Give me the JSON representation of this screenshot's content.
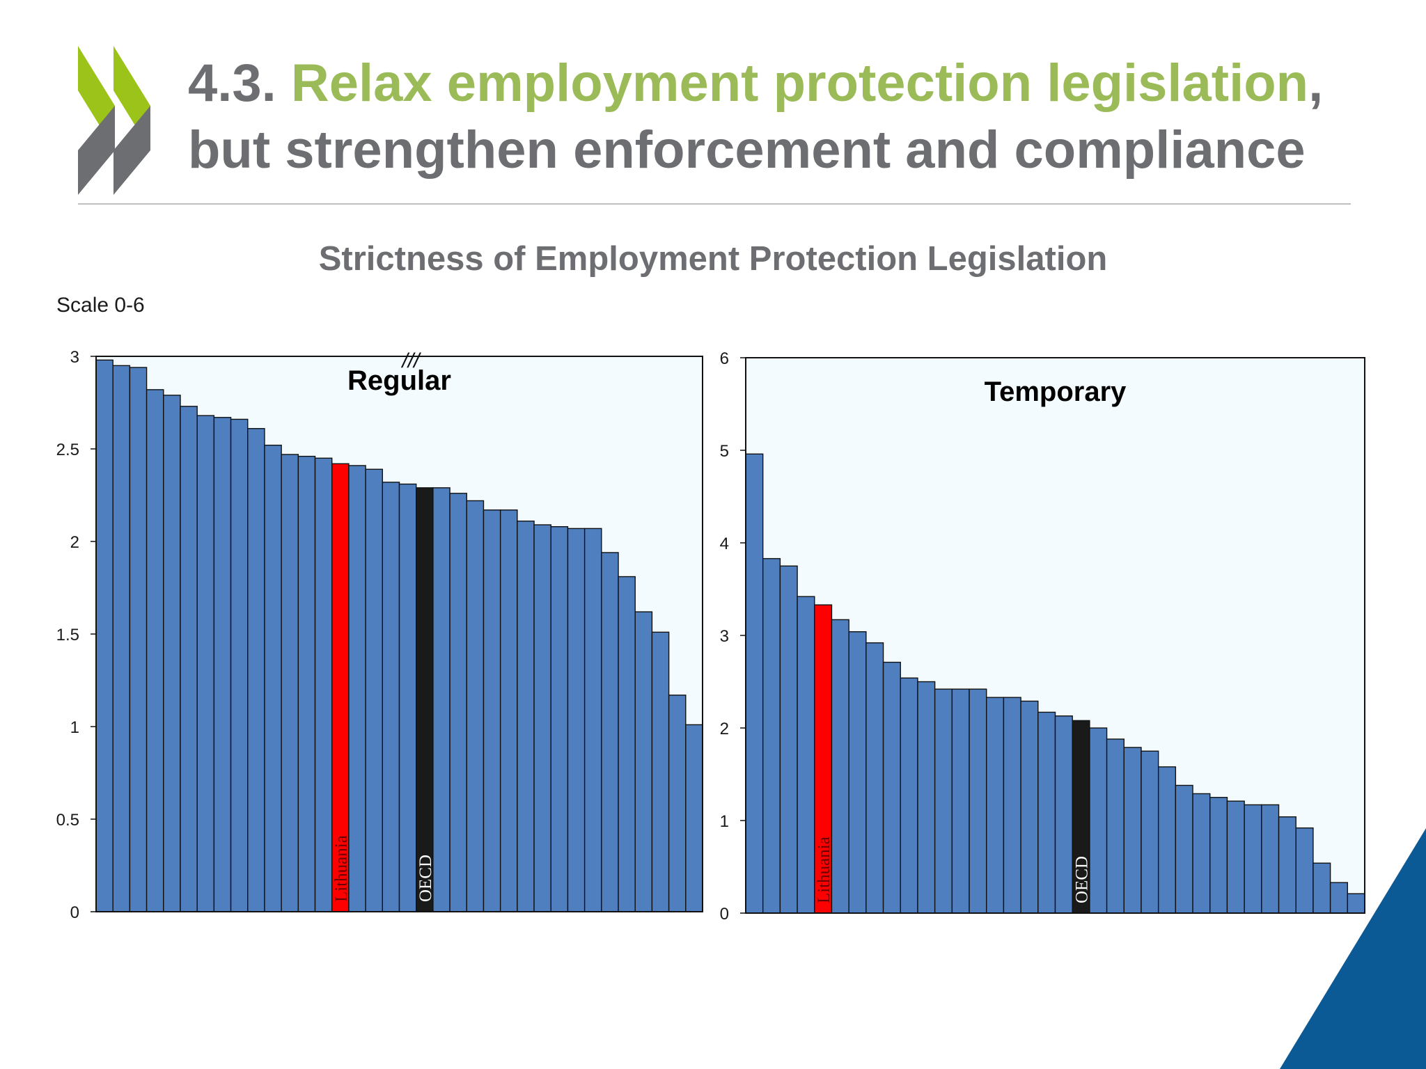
{
  "slide": {
    "title_number": "4.3. ",
    "title_highlight": "Relax employment protection legislation",
    "title_comma": ",",
    "title_line2": "but strengthen enforcement and compliance",
    "scale_label": "Scale 0-6"
  },
  "colors": {
    "bar": "#4f7fbe",
    "highlight_country": "#ff0000",
    "oecd": "#1a1a1a",
    "title_gray": "#6d6e71",
    "title_green": "#9bbb59",
    "logo_green": "#9bc31a",
    "logo_gray": "#6d6e71",
    "corner_blue": "#0b5a96"
  },
  "chart_data": {
    "title": "Strictness of Employment Protection Legislation",
    "panels": [
      {
        "type": "bar",
        "title": "Regular",
        "ylim": [
          0,
          3
        ],
        "yticks": [
          "0",
          "0.5",
          "1",
          "1.5",
          "2",
          "2.5",
          "3"
        ],
        "axis_break": "///",
        "values": [
          2.98,
          2.95,
          2.94,
          2.82,
          2.79,
          2.73,
          2.68,
          2.67,
          2.66,
          2.61,
          2.52,
          2.47,
          2.46,
          2.45,
          2.42,
          2.41,
          2.39,
          2.32,
          2.31,
          2.29,
          2.29,
          2.26,
          2.22,
          2.17,
          2.17,
          2.11,
          2.09,
          2.08,
          2.07,
          2.07,
          1.94,
          1.81,
          1.62,
          1.51,
          1.17,
          1.01
        ],
        "highlights": [
          {
            "index": 14,
            "label": "Lithuania",
            "kind": "country"
          },
          {
            "index": 19,
            "label": "OECD",
            "kind": "oecd"
          }
        ]
      },
      {
        "type": "bar",
        "title": "Temporary",
        "ylim": [
          0,
          6
        ],
        "yticks": [
          "0",
          "1",
          "2",
          "3",
          "4",
          "5",
          "6"
        ],
        "values": [
          4.96,
          3.83,
          3.75,
          3.42,
          3.33,
          3.17,
          3.04,
          2.92,
          2.71,
          2.54,
          2.5,
          2.42,
          2.42,
          2.42,
          2.33,
          2.33,
          2.29,
          2.17,
          2.13,
          2.08,
          2.0,
          1.88,
          1.79,
          1.75,
          1.58,
          1.38,
          1.29,
          1.25,
          1.21,
          1.17,
          1.17,
          1.04,
          0.92,
          0.54,
          0.33,
          0.21
        ],
        "highlights": [
          {
            "index": 4,
            "label": "Lithuania",
            "kind": "country"
          },
          {
            "index": 19,
            "label": "OECD",
            "kind": "oecd"
          }
        ]
      }
    ]
  }
}
